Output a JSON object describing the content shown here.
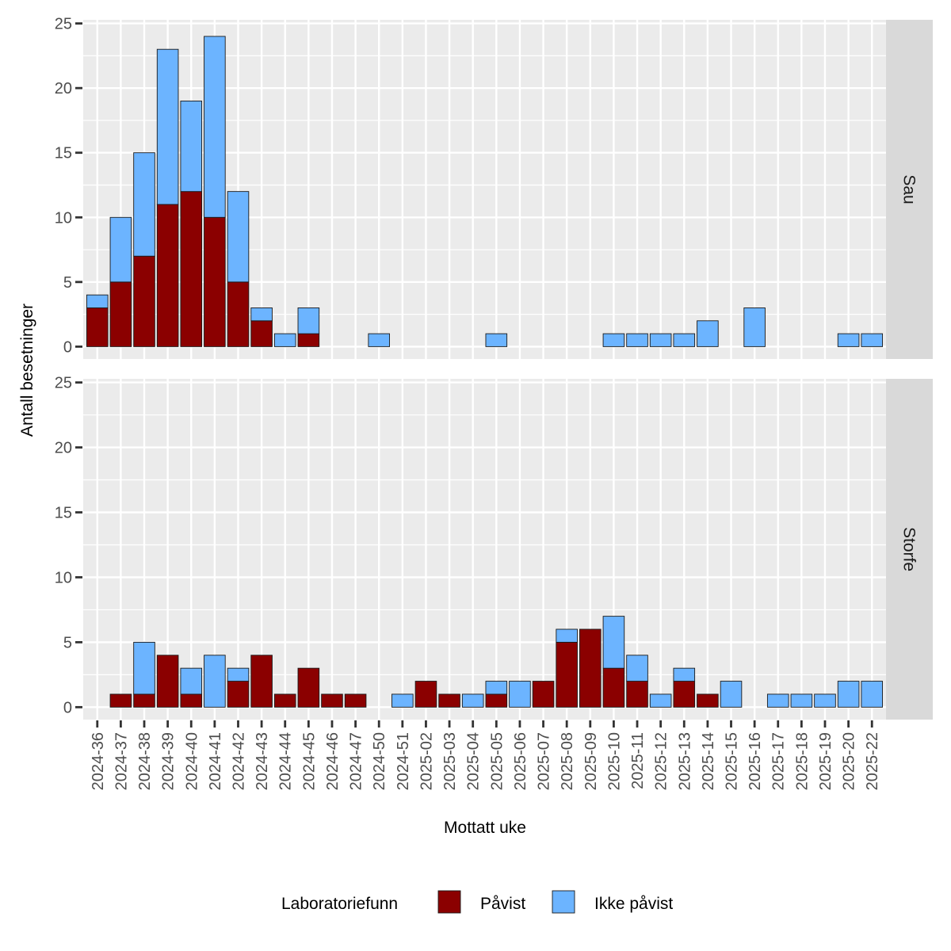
{
  "chart_data": {
    "type": "bar",
    "stacked": true,
    "xlabel": "Mottatt uke",
    "ylabel": "Antall besetninger",
    "ylim": [
      0,
      25
    ],
    "yticks": [
      0,
      5,
      10,
      15,
      20,
      25
    ],
    "grid": true,
    "categories": [
      "2024-36",
      "2024-37",
      "2024-38",
      "2024-39",
      "2024-40",
      "2024-41",
      "2024-42",
      "2024-43",
      "2024-44",
      "2024-45",
      "2024-46",
      "2024-47",
      "2024-50",
      "2024-51",
      "2025-02",
      "2025-03",
      "2025-04",
      "2025-05",
      "2025-06",
      "2025-07",
      "2025-08",
      "2025-09",
      "2025-10",
      "2025-11",
      "2025-12",
      "2025-13",
      "2025-14",
      "2025-15",
      "2025-16",
      "2025-17",
      "2025-18",
      "2025-19",
      "2025-20",
      "2025-22"
    ],
    "legend": {
      "title": "Laboratoriefunn",
      "position": "bottom",
      "entries": [
        {
          "name": "Påvist",
          "color": "#8B0000"
        },
        {
          "name": "Ikke påvist",
          "color": "#6CB4FF"
        }
      ]
    },
    "panels": [
      {
        "name": "Sau",
        "series": [
          {
            "name": "Påvist",
            "values": [
              3,
              5,
              7,
              11,
              12,
              10,
              5,
              2,
              0,
              1,
              0,
              0,
              0,
              0,
              0,
              0,
              0,
              0,
              0,
              0,
              0,
              0,
              0,
              0,
              0,
              0,
              0,
              0,
              0,
              0,
              0,
              0,
              0,
              0
            ]
          },
          {
            "name": "Ikke påvist",
            "values": [
              1,
              5,
              8,
              12,
              7,
              14,
              7,
              1,
              1,
              2,
              0,
              0,
              1,
              0,
              0,
              0,
              0,
              1,
              0,
              0,
              0,
              0,
              1,
              1,
              1,
              1,
              2,
              0,
              3,
              0,
              0,
              0,
              1,
              1
            ]
          }
        ]
      },
      {
        "name": "Storfe",
        "series": [
          {
            "name": "Påvist",
            "values": [
              0,
              1,
              1,
              4,
              1,
              0,
              2,
              4,
              1,
              3,
              1,
              1,
              0,
              0,
              2,
              1,
              0,
              1,
              0,
              2,
              5,
              6,
              3,
              2,
              0,
              2,
              1,
              0,
              0,
              0,
              0,
              0,
              0,
              0
            ]
          },
          {
            "name": "Ikke påvist",
            "values": [
              0,
              0,
              4,
              0,
              2,
              4,
              1,
              0,
              0,
              0,
              0,
              0,
              0,
              1,
              0,
              0,
              1,
              1,
              2,
              0,
              1,
              0,
              4,
              2,
              1,
              1,
              0,
              2,
              0,
              1,
              1,
              1,
              2,
              2
            ]
          }
        ]
      }
    ]
  },
  "colors": {
    "panel_bg": "#EBEBEB",
    "grid": "#FFFFFF",
    "strip_bg": "#D9D9D9",
    "bar_outline": "#1A1A1A"
  }
}
